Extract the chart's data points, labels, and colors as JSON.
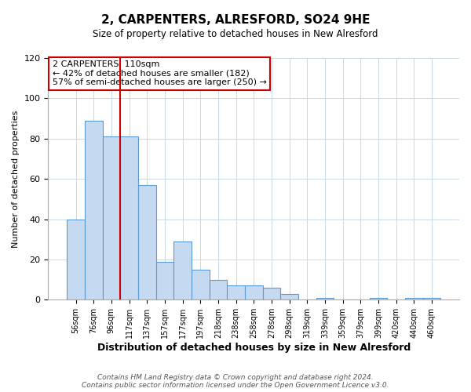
{
  "title": "2, CARPENTERS, ALRESFORD, SO24 9HE",
  "subtitle": "Size of property relative to detached houses in New Alresford",
  "xlabel": "Distribution of detached houses by size in New Alresford",
  "ylabel": "Number of detached properties",
  "categories": [
    "56sqm",
    "76sqm",
    "96sqm",
    "117sqm",
    "137sqm",
    "157sqm",
    "177sqm",
    "197sqm",
    "218sqm",
    "238sqm",
    "258sqm",
    "278sqm",
    "298sqm",
    "319sqm",
    "339sqm",
    "359sqm",
    "379sqm",
    "399sqm",
    "420sqm",
    "440sqm",
    "460sqm"
  ],
  "values": [
    40,
    89,
    81,
    81,
    57,
    19,
    29,
    15,
    10,
    7,
    7,
    6,
    3,
    0,
    1,
    0,
    0,
    1,
    0,
    1,
    1
  ],
  "bar_color": "#c5d9f0",
  "bar_edge_color": "#5b9bd5",
  "ylim": [
    0,
    120
  ],
  "yticks": [
    0,
    20,
    40,
    60,
    80,
    100,
    120
  ],
  "vline_x": 2.5,
  "marker_color": "#cc0000",
  "annotation_title": "2 CARPENTERS: 110sqm",
  "annotation_line1": "← 42% of detached houses are smaller (182)",
  "annotation_line2": "57% of semi-detached houses are larger (250) →",
  "annotation_box_color": "#cc0000",
  "footer1": "Contains HM Land Registry data © Crown copyright and database right 2024.",
  "footer2": "Contains public sector information licensed under the Open Government Licence v3.0.",
  "background_color": "#ffffff",
  "grid_color": "#c8d8e8"
}
